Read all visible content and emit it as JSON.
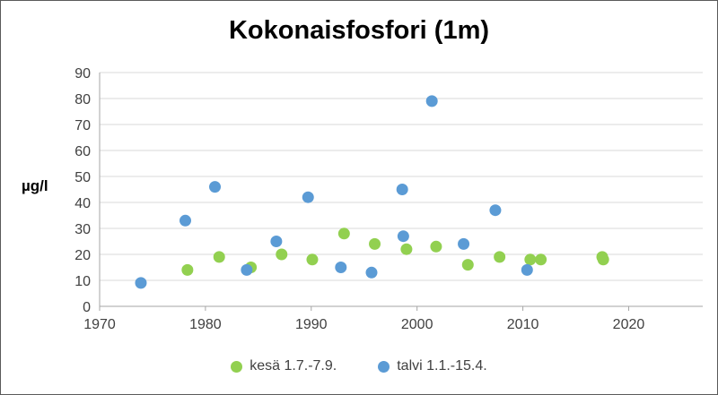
{
  "chart_data": {
    "type": "scatter",
    "title": "Kokonaisfosfori (1m)",
    "xlabel": "",
    "ylabel": "µg/l",
    "xlim": [
      1970,
      2027
    ],
    "ylim": [
      0,
      90
    ],
    "x_ticks": [
      1970,
      1980,
      1990,
      2000,
      2010,
      2020
    ],
    "y_ticks": [
      0,
      10,
      20,
      30,
      40,
      50,
      60,
      70,
      80,
      90
    ],
    "grid": "horizontal",
    "legend_position": "bottom",
    "series": [
      {
        "name": "kesä 1.7.-7.9.",
        "color": "#92d050",
        "points": [
          [
            1978.3,
            14
          ],
          [
            1981.3,
            19
          ],
          [
            1984.3,
            15
          ],
          [
            1987.2,
            20
          ],
          [
            1990.1,
            18
          ],
          [
            1993.1,
            28
          ],
          [
            1996.0,
            24
          ],
          [
            1999.0,
            22
          ],
          [
            2001.8,
            23
          ],
          [
            2004.8,
            16
          ],
          [
            2007.8,
            19
          ],
          [
            2010.7,
            18
          ],
          [
            2011.7,
            18
          ],
          [
            2017.5,
            19
          ],
          [
            2017.6,
            18
          ]
        ]
      },
      {
        "name": "talvi 1.1.-15.4.",
        "color": "#5b9bd5",
        "points": [
          [
            1973.9,
            9
          ],
          [
            1978.1,
            33
          ],
          [
            1980.9,
            46
          ],
          [
            1983.9,
            14
          ],
          [
            1986.7,
            25
          ],
          [
            1989.7,
            42
          ],
          [
            1992.8,
            15
          ],
          [
            1995.7,
            13
          ],
          [
            1998.6,
            45
          ],
          [
            1998.7,
            27
          ],
          [
            2001.4,
            79
          ],
          [
            2004.4,
            24
          ],
          [
            2007.4,
            37
          ],
          [
            2010.4,
            14
          ]
        ]
      }
    ]
  }
}
